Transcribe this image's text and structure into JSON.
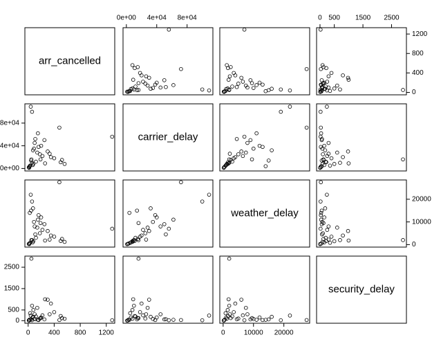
{
  "chart_data": {
    "type": "scatter_matrix",
    "variables": [
      {
        "name": "arr_cancelled",
        "lim": [
          -50,
          1330
        ],
        "ticks": [
          0,
          400,
          800,
          1200
        ],
        "values": [
          1290,
          40,
          60,
          480,
          50,
          520,
          300,
          250,
          150,
          200,
          100,
          350,
          80,
          30,
          120,
          180,
          20,
          60,
          400,
          90,
          10,
          220,
          140,
          70,
          560,
          45,
          160,
          260,
          110,
          25,
          330,
          15,
          190,
          75,
          500
        ]
      },
      {
        "name": "carrier_delay",
        "lim": [
          -4400,
          114000
        ],
        "ticks": [
          {
            "value": 0,
            "label": "0e+00"
          },
          {
            "value": 40000,
            "label": "4e+04"
          },
          {
            "value": 80000,
            "label": "8e+04"
          }
        ],
        "values": [
          56000,
          109000,
          100000,
          72000,
          16000,
          15000,
          30000,
          50000,
          62000,
          40000,
          45000,
          20000,
          8000,
          5000,
          12000,
          25000,
          3000,
          10000,
          18000,
          35000,
          2000,
          22000,
          28000,
          6000,
          8000,
          14000,
          38000,
          9000,
          52000,
          4000,
          26000,
          1000,
          16000,
          32000,
          11000
        ]
      },
      {
        "name": "weather_delay",
        "lim": [
          -1100,
          28500
        ],
        "ticks": [
          0,
          10000,
          20000
        ],
        "values": [
          7000,
          22000,
          19000,
          27500,
          2000,
          2500,
          6000,
          9000,
          11000,
          12000,
          8000,
          4000,
          1500,
          800,
          3000,
          5000,
          500,
          2000,
          3500,
          10000,
          300,
          6500,
          7500,
          1000,
          1200,
          15000,
          13000,
          1800,
          4500,
          14000,
          2200,
          200,
          9500,
          16000,
          1600
        ]
      },
      {
        "name": "security_delay",
        "lim": [
          -120,
          3020
        ],
        "ticks": [
          0,
          500,
          1500,
          2500
        ],
        "values": [
          20,
          240,
          20,
          30,
          2900,
          120,
          980,
          60,
          40,
          150,
          300,
          800,
          500,
          350,
          200,
          100,
          50,
          700,
          400,
          80,
          10,
          250,
          600,
          150,
          90,
          60,
          30,
          1000,
          70,
          40,
          300,
          5,
          120,
          180,
          220
        ]
      }
    ]
  }
}
